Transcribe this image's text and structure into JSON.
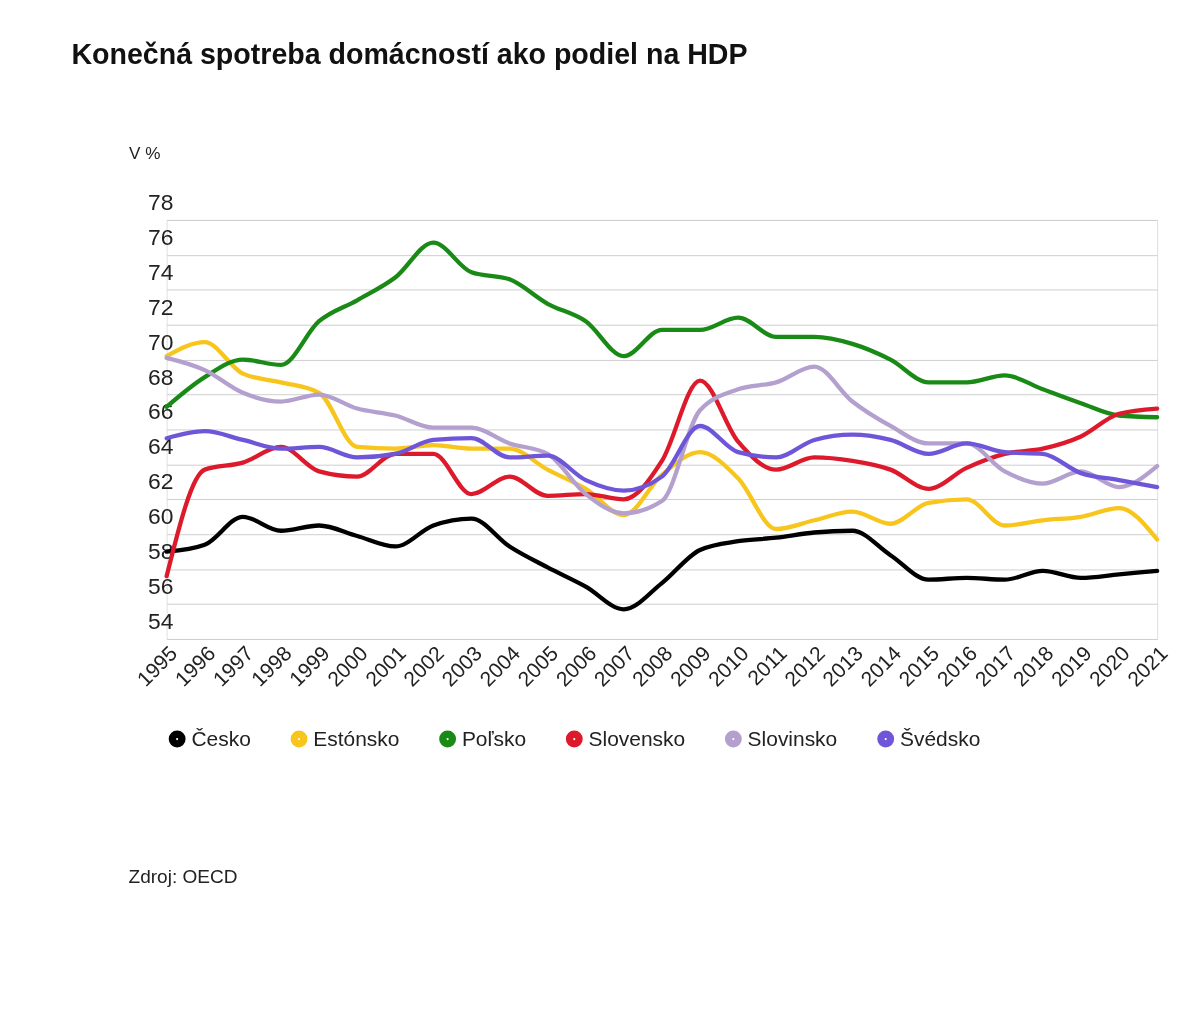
{
  "chart_data": {
    "type": "line",
    "title": "Konečná spotreba domácností ako podiel na HDP",
    "ylabel": "V %",
    "categories": [
      "1995",
      "1996",
      "1997",
      "1998",
      "1999",
      "2000",
      "2001",
      "2002",
      "2003",
      "2004",
      "2005",
      "2006",
      "2007",
      "2008",
      "2009",
      "2010",
      "2011",
      "2012",
      "2013",
      "2014",
      "2015",
      "2016",
      "2017",
      "2018",
      "2019",
      "2020",
      "2021"
    ],
    "ylim": [
      54,
      78
    ],
    "yticks": [
      54,
      56,
      58,
      60,
      62,
      64,
      66,
      68,
      70,
      72,
      74,
      76,
      78
    ],
    "grid": "y",
    "legend": "bottom",
    "marker": "none",
    "line_style": "solid",
    "series": [
      {
        "name": "Česko",
        "color": "#000000",
        "values": [
          59.0,
          59.4,
          61.0,
          60.2,
          60.5,
          59.9,
          59.3,
          60.5,
          60.9,
          59.3,
          58.1,
          57.0,
          55.7,
          57.2,
          59.1,
          59.6,
          59.8,
          60.1,
          60.2,
          58.8,
          57.4,
          57.5,
          57.4,
          57.9,
          57.5,
          57.7,
          57.9
        ]
      },
      {
        "name": "Estónsko",
        "color": "#f8c51c",
        "values": [
          70.2,
          71.0,
          69.2,
          68.7,
          68.1,
          65.0,
          64.9,
          65.1,
          64.9,
          64.9,
          63.7,
          62.6,
          61.1,
          63.4,
          64.7,
          63.2,
          60.3,
          60.8,
          61.3,
          60.6,
          61.8,
          62.0,
          60.5,
          60.8,
          61.0,
          61.5,
          59.7
        ]
      },
      {
        "name": "Poľsko",
        "color": "#1a8a17",
        "values": [
          67.3,
          69.0,
          70.0,
          69.7,
          72.2,
          73.4,
          74.7,
          76.7,
          75.0,
          74.6,
          73.2,
          72.2,
          70.2,
          71.7,
          71.7,
          72.4,
          71.3,
          71.3,
          70.9,
          70.0,
          68.7,
          68.7,
          69.1,
          68.3,
          67.5,
          66.8,
          66.7
        ]
      },
      {
        "name": "Slovensko",
        "color": "#dc1a2b",
        "values": [
          57.6,
          63.7,
          64.1,
          65.0,
          63.6,
          63.3,
          64.6,
          64.6,
          62.3,
          63.3,
          62.2,
          62.3,
          62.0,
          64.2,
          68.8,
          65.3,
          63.7,
          64.4,
          64.2,
          63.7,
          62.6,
          63.8,
          64.6,
          64.9,
          65.6,
          66.9,
          67.2
        ]
      },
      {
        "name": "Slovinsko",
        "color": "#b4a0cf",
        "values": [
          70.1,
          69.4,
          68.1,
          67.6,
          68.0,
          67.2,
          66.8,
          66.1,
          66.1,
          65.2,
          64.6,
          62.3,
          61.2,
          61.9,
          67.1,
          68.3,
          68.7,
          69.6,
          67.6,
          66.2,
          65.2,
          65.2,
          63.6,
          62.9,
          63.6,
          62.7,
          63.9
        ]
      },
      {
        "name": "Švédsko",
        "color": "#6f56d9",
        "values": [
          65.5,
          65.9,
          65.4,
          64.9,
          65.0,
          64.4,
          64.6,
          65.4,
          65.5,
          64.4,
          64.5,
          63.1,
          62.5,
          63.3,
          66.2,
          64.7,
          64.4,
          65.4,
          65.7,
          65.4,
          64.6,
          65.2,
          64.7,
          64.6,
          63.5,
          63.1,
          62.7
        ]
      }
    ],
    "annotations": [
      "Zdroj: OECD"
    ]
  }
}
